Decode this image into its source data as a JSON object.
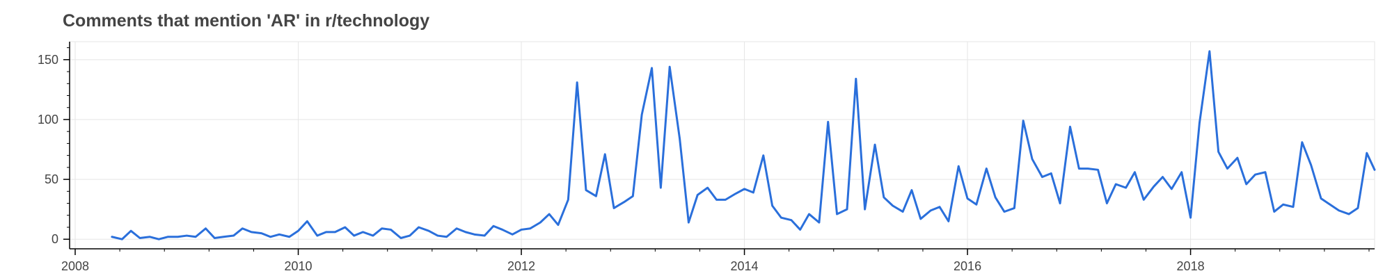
{
  "chart_data": {
    "type": "line",
    "title": "Comments that mention 'AR' in r/technology",
    "xlabel": "",
    "ylabel": "",
    "xlim": [
      2007.95,
      2019.65
    ],
    "ylim": [
      -8,
      165
    ],
    "x_ticks": [
      2008,
      2010,
      2012,
      2014,
      2016,
      2018
    ],
    "x_tick_labels": [
      "2008",
      "2010",
      "2012",
      "2014",
      "2016",
      "2018"
    ],
    "y_ticks": [
      0,
      50,
      100,
      150
    ],
    "y_tick_labels": [
      "0",
      "50",
      "100",
      "150"
    ],
    "grid": true,
    "color": "#2a6fdb",
    "series": [
      {
        "x": [
          2008.33,
          2008.42,
          2008.5,
          2008.58,
          2008.67,
          2008.75,
          2008.83,
          2008.92,
          2009.0,
          2009.08,
          2009.17,
          2009.25,
          2009.33,
          2009.42,
          2009.5,
          2009.58,
          2009.67,
          2009.75,
          2009.83,
          2009.92,
          2010.0,
          2010.08,
          2010.17,
          2010.25,
          2010.33,
          2010.42,
          2010.5,
          2010.58,
          2010.67,
          2010.75,
          2010.83,
          2010.92,
          2011.0,
          2011.08,
          2011.17,
          2011.25,
          2011.33,
          2011.42,
          2011.5,
          2011.58,
          2011.67,
          2011.75,
          2011.83,
          2011.92,
          2012.0,
          2012.08,
          2012.17,
          2012.25,
          2012.33,
          2012.42,
          2012.5,
          2012.58,
          2012.67,
          2012.75,
          2012.83,
          2012.92,
          2013.0,
          2013.08,
          2013.17,
          2013.25,
          2013.33,
          2013.42,
          2013.5,
          2013.58,
          2013.67,
          2013.75,
          2013.83,
          2013.92,
          2014.0,
          2014.08,
          2014.17,
          2014.25,
          2014.33,
          2014.42,
          2014.5,
          2014.58,
          2014.67,
          2014.75,
          2014.83,
          2014.92,
          2015.0,
          2015.08,
          2015.17,
          2015.25,
          2015.33,
          2015.42,
          2015.5,
          2015.58,
          2015.67,
          2015.75,
          2015.83,
          2015.92,
          2016.0,
          2016.08,
          2016.17,
          2016.25,
          2016.33,
          2016.42,
          2016.5,
          2016.58,
          2016.67,
          2016.75,
          2016.83,
          2016.92,
          2017.0,
          2017.08,
          2017.17,
          2017.25,
          2017.33,
          2017.42,
          2017.5,
          2017.58,
          2017.67,
          2017.75,
          2017.83,
          2017.92,
          2018.0,
          2018.08,
          2018.17,
          2018.25,
          2018.33,
          2018.42,
          2018.5,
          2018.58,
          2018.67,
          2018.75,
          2018.83,
          2018.92,
          2019.0,
          2019.08,
          2019.17,
          2019.25,
          2019.33,
          2019.42,
          2019.5,
          2019.58,
          2019.65
        ],
        "y": [
          2,
          0,
          7,
          1,
          2,
          0,
          2,
          2,
          3,
          2,
          9,
          1,
          2,
          3,
          9,
          6,
          5,
          2,
          4,
          2,
          7,
          15,
          3,
          6,
          6,
          10,
          3,
          6,
          3,
          9,
          8,
          1,
          3,
          10,
          7,
          3,
          2,
          9,
          6,
          4,
          3,
          11,
          8,
          4,
          8,
          9,
          14,
          21,
          12,
          33,
          131,
          41,
          36,
          71,
          26,
          31,
          36,
          104,
          143,
          43,
          144,
          84,
          14,
          37,
          43,
          33,
          33,
          38,
          42,
          39,
          70,
          28,
          18,
          16,
          8,
          21,
          14,
          98,
          21,
          25,
          134,
          25,
          79,
          35,
          28,
          23,
          41,
          17,
          24,
          27,
          15,
          61,
          34,
          29,
          59,
          35,
          23,
          26,
          99,
          67,
          52,
          55,
          30,
          94,
          59,
          59,
          58,
          30,
          46,
          43,
          56,
          33,
          44,
          52,
          42,
          56,
          18,
          97,
          157,
          73,
          59,
          68,
          46,
          54,
          56,
          23,
          29,
          27,
          81,
          62,
          34,
          29,
          24,
          21,
          26,
          72,
          58
        ]
      }
    ]
  }
}
